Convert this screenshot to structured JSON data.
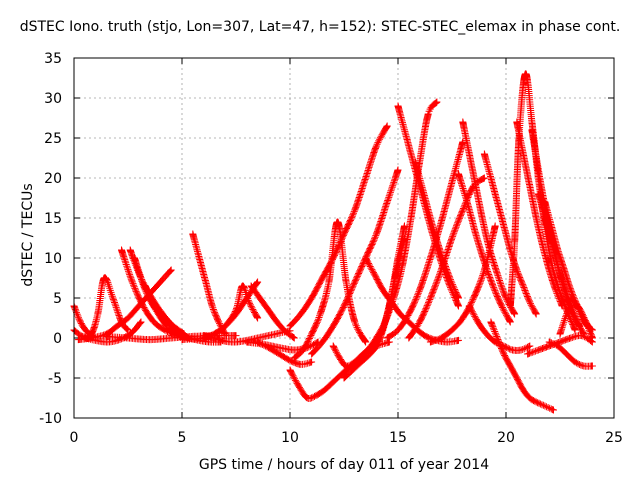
{
  "chart_data": {
    "type": "scatter",
    "title": "dSTEC Iono. truth (stjo, Lon=307, Lat=47, h=152): STEC-STEC_elemax in phase cont.",
    "xlabel": "GPS time / hours of day 011 of year 2014",
    "ylabel": "dSTEC  / TECUs",
    "xlim": [
      0,
      25
    ],
    "ylim": [
      -10,
      35
    ],
    "xticks": [
      "0",
      "5",
      "10",
      "15",
      "20",
      "25"
    ],
    "yticks": [
      "-10",
      "-5",
      "0",
      "5",
      "10",
      "15",
      "20",
      "25",
      "30",
      "35"
    ],
    "grid": true,
    "marker": "+",
    "color": "#ff0000",
    "arcs": [
      {
        "name": "arc-01",
        "x": [
          0.0,
          0.3,
          0.6,
          0.9
        ],
        "y": [
          4.0,
          2.0,
          0.8,
          0.2
        ]
      },
      {
        "name": "arc-02",
        "x": [
          0.0,
          0.4,
          0.8,
          1.1,
          1.4,
          1.8,
          2.2,
          2.5
        ],
        "y": [
          1.0,
          0.2,
          0.5,
          3.0,
          7.5,
          5.0,
          2.0,
          1.0
        ]
      },
      {
        "name": "arc-03",
        "x": [
          0.2,
          0.8,
          1.5,
          2.0,
          2.5,
          3.0,
          3.5,
          4.0,
          4.5
        ],
        "y": [
          -0.2,
          0.0,
          0.5,
          1.5,
          2.5,
          4.0,
          5.5,
          7.0,
          8.5
        ]
      },
      {
        "name": "arc-04",
        "x": [
          0.5,
          1.0,
          1.5,
          2.0,
          2.5,
          2.8,
          3.1
        ],
        "y": [
          0.0,
          -0.3,
          -0.5,
          -0.3,
          0.3,
          1.0,
          2.0
        ]
      },
      {
        "name": "arc-05",
        "x": [
          2.2,
          2.7,
          3.2,
          3.7,
          4.2,
          4.8,
          5.3
        ],
        "y": [
          11.0,
          7.0,
          4.0,
          2.0,
          1.0,
          0.3,
          0.0
        ]
      },
      {
        "name": "arc-06",
        "x": [
          2.6,
          3.1,
          3.6,
          4.1,
          4.6,
          5.1
        ],
        "y": [
          11.0,
          7.5,
          5.0,
          3.0,
          1.5,
          0.5
        ]
      },
      {
        "name": "arc-07",
        "x": [
          2.8,
          3.3,
          3.8,
          4.3,
          4.8
        ],
        "y": [
          10.0,
          6.0,
          3.5,
          2.0,
          1.0
        ]
      },
      {
        "name": "arc-08",
        "x": [
          3.3,
          3.8,
          4.3,
          4.8,
          5.3,
          5.8,
          6.3,
          6.8
        ],
        "y": [
          6.5,
          3.5,
          1.5,
          0.5,
          0.0,
          -0.3,
          -0.5,
          -0.5
        ]
      },
      {
        "name": "arc-09",
        "x": [
          1.5,
          2.5,
          3.5,
          4.5,
          5.5,
          6.5,
          7.5
        ],
        "y": [
          0.2,
          0.0,
          -0.2,
          0.0,
          0.2,
          0.3,
          0.3
        ]
      },
      {
        "name": "arc-10",
        "x": [
          5.5,
          5.8,
          6.1,
          6.4,
          6.7,
          7.0
        ],
        "y": [
          13.0,
          10.0,
          7.0,
          4.0,
          2.0,
          0.5
        ]
      },
      {
        "name": "arc-11",
        "x": [
          6.0,
          6.5,
          7.0,
          7.5,
          7.8,
          8.1,
          8.5
        ],
        "y": [
          0.0,
          0.5,
          1.5,
          3.5,
          6.5,
          4.5,
          2.5
        ]
      },
      {
        "name": "arc-12",
        "x": [
          5.0,
          5.5,
          6.0,
          6.5,
          7.0,
          7.5,
          8.0,
          8.5
        ],
        "y": [
          -0.2,
          -0.1,
          0.0,
          0.5,
          1.5,
          3.0,
          5.0,
          7.0
        ]
      },
      {
        "name": "arc-13",
        "x": [
          6.0,
          6.5,
          7.0,
          7.5,
          8.0,
          8.5,
          9.0,
          9.5,
          10.0
        ],
        "y": [
          0.3,
          0.0,
          -0.4,
          -0.5,
          -0.3,
          0.0,
          0.3,
          0.6,
          0.9
        ]
      },
      {
        "name": "arc-14",
        "x": [
          8.2,
          8.6,
          9.0,
          9.4,
          9.8,
          10.2
        ],
        "y": [
          6.5,
          5.0,
          3.5,
          2.0,
          0.8,
          0.0
        ]
      },
      {
        "name": "arc-15",
        "x": [
          8.5,
          9.0,
          9.5,
          10.0,
          10.5,
          11.0
        ],
        "y": [
          -0.5,
          -1.2,
          -2.0,
          -2.8,
          -3.3,
          -3.0
        ]
      },
      {
        "name": "arc-16",
        "x": [
          8.0,
          8.8,
          9.5,
          10.2,
          10.8,
          11.3
        ],
        "y": [
          -0.5,
          -0.8,
          -1.2,
          -1.5,
          -1.2,
          -0.5
        ]
      },
      {
        "name": "arc-17",
        "x": [
          10.0,
          10.5,
          11.0,
          11.5,
          12.0,
          12.5,
          13.0,
          13.5,
          14.0,
          14.5
        ],
        "y": [
          1.5,
          3.0,
          5.0,
          7.5,
          10.0,
          13.0,
          16.0,
          20.0,
          24.0,
          26.5
        ]
      },
      {
        "name": "arc-18",
        "x": [
          10.0,
          10.4,
          10.8,
          11.2,
          11.6,
          12.0,
          12.4,
          12.8,
          13.2,
          13.6,
          14.0,
          14.6
        ],
        "y": [
          -4.0,
          -6.0,
          -7.5,
          -7.2,
          -6.5,
          -5.5,
          -4.5,
          -3.5,
          -2.5,
          -1.5,
          -1.0,
          -0.5
        ]
      },
      {
        "name": "arc-19",
        "x": [
          10.2,
          10.6,
          11.0,
          11.4,
          11.8,
          12.2,
          12.6,
          13.0,
          13.5
        ],
        "y": [
          -2.5,
          -1.5,
          0.5,
          3.0,
          7.0,
          14.5,
          7.0,
          2.0,
          -0.5
        ]
      },
      {
        "name": "arc-20",
        "x": [
          11.0,
          11.5,
          12.0,
          12.5,
          13.0,
          13.5,
          14.0,
          14.5,
          15.0
        ],
        "y": [
          -2.0,
          -0.5,
          1.5,
          4.0,
          7.0,
          10.0,
          13.0,
          17.0,
          21.0
        ]
      },
      {
        "name": "arc-21",
        "x": [
          12.0,
          12.3,
          12.6,
          13.0,
          13.4,
          13.8,
          14.2,
          14.6,
          15.0,
          15.3
        ],
        "y": [
          -1.0,
          -2.5,
          -3.5,
          -3.0,
          -2.0,
          -1.0,
          0.5,
          4.0,
          10.0,
          14.0
        ]
      },
      {
        "name": "arc-22",
        "x": [
          12.5,
          12.9,
          13.3,
          13.7,
          14.1,
          14.5,
          14.9,
          15.3
        ],
        "y": [
          -5.0,
          -4.0,
          -3.0,
          -2.0,
          -0.5,
          3.0,
          8.0,
          12.5
        ]
      },
      {
        "name": "arc-23",
        "x": [
          13.2,
          13.6,
          14.0,
          14.4,
          14.8,
          15.2,
          15.6,
          16.0,
          16.4,
          16.8
        ],
        "y": [
          -2.5,
          -1.5,
          0.0,
          2.0,
          5.0,
          9.0,
          15.0,
          22.0,
          28.0,
          29.5
        ]
      },
      {
        "name": "arc-24",
        "x": [
          13.5,
          13.9,
          14.3,
          14.7,
          15.1,
          15.5,
          15.9,
          16.3,
          16.8,
          17.3,
          17.8
        ],
        "y": [
          10.0,
          8.0,
          6.0,
          4.5,
          3.0,
          2.0,
          1.0,
          0.2,
          -0.3,
          -0.5,
          -0.3
        ]
      },
      {
        "name": "arc-25",
        "x": [
          15.0,
          15.4,
          15.8,
          16.2,
          16.6,
          17.0,
          17.4,
          17.8
        ],
        "y": [
          29.0,
          25.0,
          21.0,
          17.0,
          13.0,
          9.5,
          6.5,
          4.0
        ]
      },
      {
        "name": "arc-26",
        "x": [
          14.5,
          15.0,
          15.5,
          16.0,
          16.5,
          17.0,
          17.5,
          18.0
        ],
        "y": [
          0.0,
          1.0,
          3.0,
          6.0,
          10.0,
          14.5,
          19.5,
          24.5
        ]
      },
      {
        "name": "arc-27",
        "x": [
          15.5,
          16.0,
          16.5,
          17.0,
          17.5,
          18.0,
          18.5,
          19.0
        ],
        "y": [
          0.0,
          2.0,
          5.0,
          8.5,
          12.5,
          16.0,
          19.0,
          20.0
        ]
      },
      {
        "name": "arc-28",
        "x": [
          15.8,
          16.2,
          16.6,
          17.0,
          17.4,
          17.8
        ],
        "y": [
          22.0,
          18.0,
          14.0,
          10.5,
          7.5,
          5.0
        ]
      },
      {
        "name": "arc-29",
        "x": [
          16.5,
          17.0,
          17.5,
          18.0,
          18.5,
          19.0,
          19.5
        ],
        "y": [
          -0.5,
          0.0,
          1.0,
          2.5,
          5.0,
          8.5,
          14.0
        ]
      },
      {
        "name": "arc-30",
        "x": [
          17.8,
          18.2,
          18.6,
          19.0,
          19.4,
          19.8,
          20.2
        ],
        "y": [
          20.5,
          17.0,
          13.0,
          9.5,
          6.5,
          4.0,
          2.0
        ]
      },
      {
        "name": "arc-31",
        "x": [
          18.0,
          18.3,
          18.6,
          18.9,
          19.2,
          19.6,
          20.0,
          20.4
        ],
        "y": [
          27.0,
          23.0,
          19.0,
          15.0,
          11.5,
          8.0,
          5.0,
          3.0
        ]
      },
      {
        "name": "arc-32",
        "x": [
          18.3,
          18.7,
          19.1,
          19.5,
          19.9,
          20.3,
          20.7,
          21.1
        ],
        "y": [
          4.0,
          2.0,
          0.5,
          -0.5,
          -1.0,
          -1.5,
          -1.5,
          -1.0
        ]
      },
      {
        "name": "arc-33",
        "x": [
          19.0,
          19.3,
          19.6,
          19.9,
          20.2,
          20.5,
          20.8,
          21.1,
          21.4
        ],
        "y": [
          23.0,
          20.0,
          17.0,
          14.0,
          11.0,
          8.5,
          6.5,
          4.5,
          3.0
        ]
      },
      {
        "name": "arc-34",
        "x": [
          19.3,
          19.6,
          19.9,
          20.2,
          20.5,
          20.8,
          21.1,
          21.4,
          21.8,
          22.2
        ],
        "y": [
          2.0,
          0.0,
          -2.0,
          -3.5,
          -5.0,
          -6.5,
          -7.5,
          -8.0,
          -8.5,
          -9.0
        ]
      },
      {
        "name": "arc-35",
        "x": [
          20.2,
          20.4,
          20.6,
          20.9,
          21.2,
          21.5,
          21.8,
          22.1,
          22.4,
          22.8,
          23.2
        ],
        "y": [
          4.0,
          12.0,
          25.0,
          33.0,
          27.0,
          20.0,
          14.0,
          9.5,
          6.5,
          3.5,
          1.0
        ]
      },
      {
        "name": "arc-36",
        "x": [
          20.5,
          20.8,
          21.1,
          21.4,
          21.7,
          22.0,
          22.3,
          22.6
        ],
        "y": [
          27.0,
          23.0,
          19.0,
          15.0,
          11.5,
          8.5,
          6.0,
          4.0
        ]
      },
      {
        "name": "arc-37",
        "x": [
          21.2,
          21.5,
          21.8,
          22.1,
          22.4,
          22.7,
          23.0,
          23.4
        ],
        "y": [
          26.0,
          21.0,
          16.5,
          12.5,
          9.0,
          6.0,
          3.5,
          1.5
        ]
      },
      {
        "name": "arc-38",
        "x": [
          21.5,
          21.8,
          22.1,
          22.4,
          22.7,
          23.0,
          23.3,
          23.6
        ],
        "y": [
          18.0,
          15.0,
          12.0,
          9.0,
          6.5,
          4.0,
          2.0,
          0.5
        ]
      },
      {
        "name": "arc-39",
        "x": [
          21.8,
          22.1,
          22.4,
          22.7,
          23.0,
          23.4,
          23.8
        ],
        "y": [
          17.0,
          14.0,
          11.0,
          8.5,
          6.0,
          3.5,
          1.5
        ]
      },
      {
        "name": "arc-40",
        "x": [
          22.0,
          22.4,
          22.8,
          23.2,
          23.6,
          24.0
        ],
        "y": [
          -0.5,
          -1.0,
          -2.0,
          -3.0,
          -3.5,
          -3.5
        ]
      },
      {
        "name": "arc-41",
        "x": [
          22.5,
          22.9,
          23.3,
          23.7,
          24.0
        ],
        "y": [
          0.5,
          3.5,
          4.0,
          2.0,
          0.0
        ]
      },
      {
        "name": "arc-42",
        "x": [
          21.0,
          21.5,
          22.0,
          22.5,
          23.0,
          23.5,
          24.0
        ],
        "y": [
          -2.0,
          -1.5,
          -1.0,
          -0.5,
          0.0,
          0.3,
          -0.5
        ]
      },
      {
        "name": "arc-43",
        "x": [
          23.0,
          23.3,
          23.6,
          24.0
        ],
        "y": [
          5.0,
          4.0,
          2.0,
          1.0
        ]
      }
    ]
  }
}
